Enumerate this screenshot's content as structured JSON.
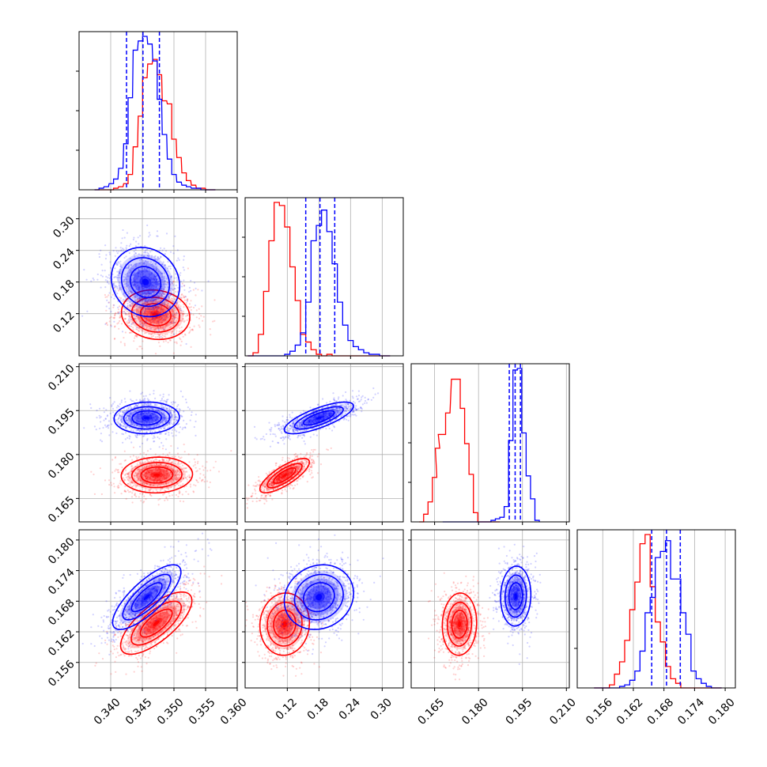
{
  "chart_data": {
    "type": "scatter",
    "series_colors": {
      "a": "#0000ff",
      "b": "#ff0000"
    },
    "grid": true,
    "params": [
      {
        "id": "p1",
        "range": [
          0.335,
          0.36
        ],
        "ticks": [
          "0.340",
          "0.345",
          "0.350",
          "0.355",
          "0.360"
        ]
      },
      {
        "id": "p2",
        "range": [
          0.04,
          0.34
        ],
        "ticks": [
          "0.12",
          "0.18",
          "0.24",
          "0.30"
        ]
      },
      {
        "id": "p3",
        "range": [
          0.157,
          0.211
        ],
        "ticks": [
          "0.165",
          "0.180",
          "0.195",
          "0.210"
        ]
      },
      {
        "id": "p4",
        "range": [
          0.151,
          0.182
        ],
        "ticks": [
          "0.156",
          "0.162",
          "0.168",
          "0.174",
          "0.180"
        ]
      }
    ],
    "histograms": [
      {
        "param": "p1",
        "quantile_lines": [
          0.3425,
          0.3451,
          0.3477
        ],
        "a": {
          "centers": [
            0.3378,
            0.3385,
            0.3393,
            0.3401,
            0.3408,
            0.3416,
            0.3424,
            0.3431,
            0.3439,
            0.3447,
            0.3454,
            0.3462,
            0.347,
            0.3477,
            0.3485,
            0.3493,
            0.35,
            0.3508,
            0.3516,
            0.3523,
            0.3531,
            0.3539,
            0.3546,
            0.3554,
            0.3562
          ],
          "counts": [
            0,
            1,
            2,
            4,
            7,
            14,
            30,
            60,
            91,
            97,
            100,
            95,
            84,
            59,
            36,
            20,
            10,
            5,
            3,
            2,
            1,
            1,
            0,
            0,
            0
          ]
        },
        "b": {
          "centers": [
            0.3378,
            0.3385,
            0.3393,
            0.3401,
            0.3408,
            0.3416,
            0.3424,
            0.3431,
            0.3439,
            0.3447,
            0.3454,
            0.3462,
            0.347,
            0.3477,
            0.3485,
            0.3493,
            0.35,
            0.3508,
            0.3516,
            0.3523,
            0.3531,
            0.3539,
            0.3546,
            0.3554,
            0.3562
          ],
          "counts": [
            0,
            0,
            0,
            0,
            1,
            2,
            4,
            10,
            28,
            48,
            73,
            82,
            85,
            75,
            58,
            56,
            33,
            21,
            11,
            6,
            3,
            1,
            1,
            0,
            0
          ]
        }
      },
      {
        "param": "p2",
        "quantile_lines": [
          0.155,
          0.182,
          0.21
        ],
        "a": {
          "centers": [
            0.05,
            0.06,
            0.07,
            0.08,
            0.09,
            0.1,
            0.11,
            0.12,
            0.13,
            0.14,
            0.15,
            0.16,
            0.17,
            0.18,
            0.19,
            0.2,
            0.21,
            0.22,
            0.23,
            0.24,
            0.25,
            0.26,
            0.27,
            0.28,
            0.29,
            0.3,
            0.31
          ],
          "counts": [
            0,
            0,
            0,
            0,
            0,
            0,
            0,
            1,
            3,
            7,
            15,
            35,
            75,
            85,
            95,
            81,
            60,
            35,
            20,
            10,
            6,
            4,
            2,
            1,
            1,
            0,
            0
          ]
        },
        "b": {
          "centers": [
            0.05,
            0.06,
            0.07,
            0.08,
            0.09,
            0.1,
            0.11,
            0.12,
            0.13,
            0.14,
            0.15,
            0.16,
            0.17,
            0.18,
            0.19,
            0.2,
            0.21,
            0.22,
            0.23,
            0.24,
            0.25,
            0.26,
            0.27,
            0.28,
            0.29,
            0.3,
            0.31
          ],
          "counts": [
            0,
            2,
            14,
            42,
            75,
            100,
            98,
            84,
            58,
            36,
            14,
            9,
            4,
            1,
            0,
            1,
            0,
            0,
            0,
            0,
            0,
            0,
            0,
            0,
            0,
            0,
            0
          ]
        }
      },
      {
        "param": "p3",
        "quantile_lines": [
          0.1905,
          0.1925,
          0.1943
        ],
        "a": {
          "centers": [
            0.1685,
            0.17,
            0.1715,
            0.173,
            0.1745,
            0.176,
            0.1775,
            0.179,
            0.1805,
            0.182,
            0.1835,
            0.185,
            0.1865,
            0.188,
            0.1895,
            0.191,
            0.1925,
            0.194,
            0.1955,
            0.197,
            0.1985,
            0.2
          ],
          "counts": [
            0,
            0,
            0,
            0,
            0,
            0,
            0,
            0,
            0,
            0,
            0,
            1,
            2,
            3,
            10,
            53,
            99,
            100,
            58,
            30,
            15,
            1
          ]
        },
        "b": {
          "centers": [
            0.1605,
            0.162,
            0.1635,
            0.165,
            0.166,
            0.167,
            0.168,
            0.1695,
            0.1715,
            0.173,
            0.1745,
            0.176,
            0.1775,
            0.179,
            0.1805,
            0.182,
            0.1835,
            0.185,
            0.1865
          ],
          "counts": [
            0,
            5,
            13,
            29,
            48,
            57,
            57,
            71,
            93,
            93,
            74,
            51,
            31,
            6,
            0,
            0,
            0,
            0,
            0
          ]
        }
      },
      {
        "param": "p4",
        "quantile_lines": [
          0.1656,
          0.1685,
          0.1712
        ],
        "a": {
          "centers": [
            0.1548,
            0.1558,
            0.1568,
            0.1578,
            0.1588,
            0.1598,
            0.1608,
            0.1618,
            0.1628,
            0.1638,
            0.1648,
            0.1658,
            0.1668,
            0.1678,
            0.1688,
            0.1698,
            0.1708,
            0.1718,
            0.1728,
            0.1738,
            0.1748,
            0.1758,
            0.1768,
            0.1778,
            0.1788
          ],
          "counts": [
            0,
            0,
            0,
            0,
            0,
            1,
            2,
            5,
            11,
            24,
            49,
            59,
            85,
            89,
            96,
            71,
            71,
            49,
            35,
            11,
            6,
            3,
            1,
            0,
            0
          ]
        },
        "b": {
          "centers": [
            0.1548,
            0.1558,
            0.1568,
            0.1578,
            0.1588,
            0.1598,
            0.1608,
            0.1618,
            0.1628,
            0.1638,
            0.1648,
            0.1658,
            0.1668,
            0.1678,
            0.1688,
            0.1698,
            0.1708,
            0.1718,
            0.1728,
            0.1738,
            0.1748,
            0.1758,
            0.1768,
            0.1778,
            0.1788
          ],
          "counts": [
            0,
            0,
            0,
            2,
            9,
            17,
            31,
            51,
            69,
            94,
            100,
            66,
            43,
            30,
            14,
            6,
            3,
            0,
            0,
            0,
            0,
            0,
            0,
            0,
            0
          ]
        }
      }
    ],
    "scatter_panels": [
      {
        "x": "p1",
        "y": "p2",
        "a": {
          "center": [
            0.3455,
            0.18
          ],
          "sd": [
            0.0023,
            0.028
          ],
          "rho": -0.12
        },
        "b": {
          "center": [
            0.3471,
            0.118
          ],
          "sd": [
            0.0023,
            0.02
          ],
          "rho": -0.1
        }
      },
      {
        "x": "p1",
        "y": "p3",
        "a": {
          "center": [
            0.3457,
            0.1925
          ],
          "sd": [
            0.0022,
            0.0023
          ],
          "rho": 0.05
        },
        "b": {
          "center": [
            0.3473,
            0.173
          ],
          "sd": [
            0.0024,
            0.0026
          ],
          "rho": 0.05
        }
      },
      {
        "x": "p2",
        "y": "p3",
        "a": {
          "center": [
            0.18,
            0.1925
          ],
          "sd": [
            0.028,
            0.0023
          ],
          "rho": 0.75
        },
        "b": {
          "center": [
            0.115,
            0.1728
          ],
          "sd": [
            0.02,
            0.0025
          ],
          "rho": 0.78
        }
      },
      {
        "x": "p1",
        "y": "p4",
        "a": {
          "center": [
            0.3457,
            0.1688
          ],
          "sd": [
            0.0023,
            0.0027
          ],
          "rho": 0.78
        },
        "b": {
          "center": [
            0.3472,
            0.1637
          ],
          "sd": [
            0.0024,
            0.0026
          ],
          "rho": 0.72
        }
      },
      {
        "x": "p2",
        "y": "p4",
        "a": {
          "center": [
            0.18,
            0.1688
          ],
          "sd": [
            0.028,
            0.0027
          ],
          "rho": 0.12
        },
        "b": {
          "center": [
            0.115,
            0.1635
          ],
          "sd": [
            0.02,
            0.0026
          ],
          "rho": 0.05
        }
      },
      {
        "x": "p3",
        "y": "p4",
        "a": {
          "center": [
            0.1927,
            0.169
          ],
          "sd": [
            0.0022,
            0.0025
          ],
          "rho": 0.05
        },
        "b": {
          "center": [
            0.1735,
            0.1635
          ],
          "sd": [
            0.0025,
            0.0026
          ],
          "rho": 0.05
        }
      }
    ]
  }
}
